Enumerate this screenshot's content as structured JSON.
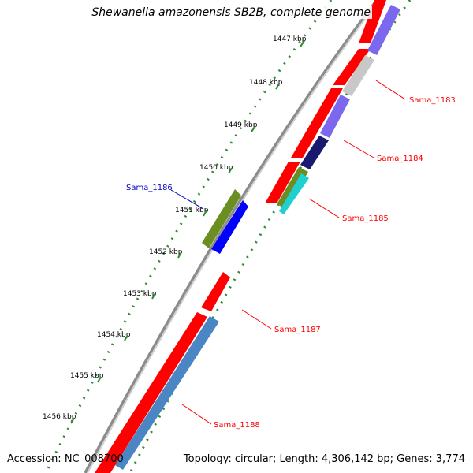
{
  "title": "Shewanella amazonensis SB2B, complete genome",
  "accession": "Accession: NC_008700",
  "summary": "Topology: circular; Length: 4,306,142 bp; Genes: 3,774",
  "ticks": [
    "1447 kbp",
    "1448 kbp",
    "1449 kbp",
    "1450 kbp",
    "1451 kbp",
    "1452 kbp",
    "1453 kbp",
    "1454 kbp",
    "1455 kbp",
    "1456 kbp"
  ],
  "gene_labels": [
    "Sama_1183",
    "Sama_1184",
    "Sama_1185",
    "Sama_1186",
    "Sama_1187",
    "Sama_1188"
  ],
  "colors": {
    "backbone": "#8c8c8c",
    "cds_forward": "#ff0000",
    "tick_green": "#2e8b2e",
    "label_red": "#ff0000",
    "label_blue": "#0000cc",
    "cog_purple": "#7b68ee",
    "cog_gray": "#c8c8c8",
    "cog_navy": "#191970",
    "cog_olive": "#6b8e23",
    "cog_cyan": "#20d0d0",
    "cog_blue": "#0000ff",
    "cog_steel": "#4a86c4"
  }
}
